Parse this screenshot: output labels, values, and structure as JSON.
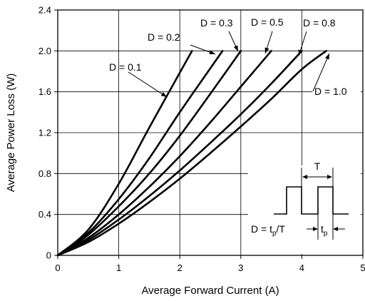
{
  "chart_data": {
    "type": "line",
    "title": "",
    "xlabel": "Average Forward Current (A)",
    "ylabel": "Average Power Loss (W)",
    "xlim": [
      0,
      5
    ],
    "ylim": [
      0,
      2.4
    ],
    "xticks": [
      0,
      1,
      2,
      3,
      4,
      5
    ],
    "yticks": [
      0,
      0.4,
      0.8,
      1.2,
      1.6,
      2.0,
      2.4
    ],
    "grid": true,
    "series": [
      {
        "name": "D = 0.1",
        "x": [
          0,
          0.5,
          1.0,
          1.5,
          2.2
        ],
        "y": [
          0,
          0.25,
          0.7,
          1.25,
          2.0
        ]
      },
      {
        "name": "D = 0.2",
        "x": [
          0,
          0.5,
          1.0,
          1.5,
          2.0,
          2.7
        ],
        "y": [
          0,
          0.22,
          0.55,
          0.95,
          1.4,
          2.0
        ]
      },
      {
        "name": "D = 0.3",
        "x": [
          0,
          0.5,
          1.0,
          1.5,
          2.0,
          2.5,
          3.0
        ],
        "y": [
          0,
          0.2,
          0.48,
          0.8,
          1.17,
          1.58,
          2.0
        ]
      },
      {
        "name": "D = 0.5",
        "x": [
          0,
          0.5,
          1.0,
          1.5,
          2.0,
          2.5,
          3.0,
          3.5
        ],
        "y": [
          0,
          0.17,
          0.4,
          0.67,
          0.97,
          1.3,
          1.65,
          2.0
        ]
      },
      {
        "name": "D = 0.8",
        "x": [
          0,
          0.5,
          1.0,
          1.5,
          2.0,
          2.5,
          3.0,
          3.5,
          4.0
        ],
        "y": [
          0,
          0.15,
          0.35,
          0.58,
          0.83,
          1.1,
          1.38,
          1.68,
          2.0
        ]
      },
      {
        "name": "D = 1.0",
        "x": [
          0,
          0.5,
          1.0,
          1.5,
          2.0,
          2.5,
          3.0,
          3.5,
          4.0,
          4.4
        ],
        "y": [
          0,
          0.13,
          0.31,
          0.52,
          0.75,
          1.0,
          1.26,
          1.53,
          1.82,
          2.0
        ]
      }
    ],
    "inset": {
      "period_label": "T",
      "duty_label": "D = t",
      "duty_sub": "p",
      "duty_tail": "/T",
      "pulse_label": "t",
      "pulse_sub": "p"
    }
  }
}
